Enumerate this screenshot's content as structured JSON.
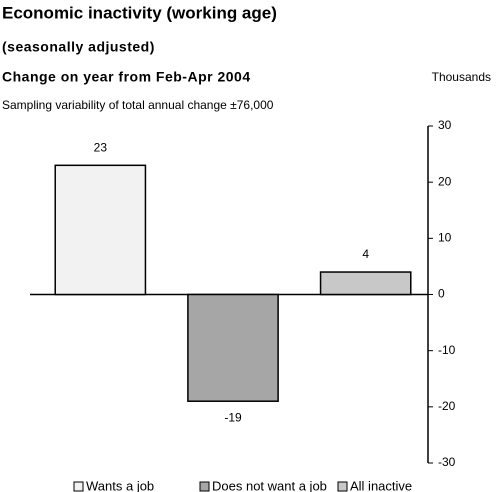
{
  "chart_data": {
    "type": "bar",
    "title": "Economic inactivity (working age)",
    "subtitle": "(seasonally adjusted)",
    "heading": "Change on year from Feb-Apr 2004",
    "unit_label": "Thousands",
    "note": "Sampling variability of total annual change ±76,000",
    "categories": [
      "Wants a job",
      "Does not want a job",
      "All inactive"
    ],
    "values": [
      23,
      -19,
      4
    ],
    "colors": [
      "#f2f2f2",
      "#a6a6a6",
      "#c8c8c8"
    ],
    "ylim": [
      -30,
      30
    ],
    "yticks": [
      30,
      20,
      10,
      0,
      -10,
      -20,
      -30
    ],
    "y_axis_side": "right",
    "legend": "bottom"
  }
}
